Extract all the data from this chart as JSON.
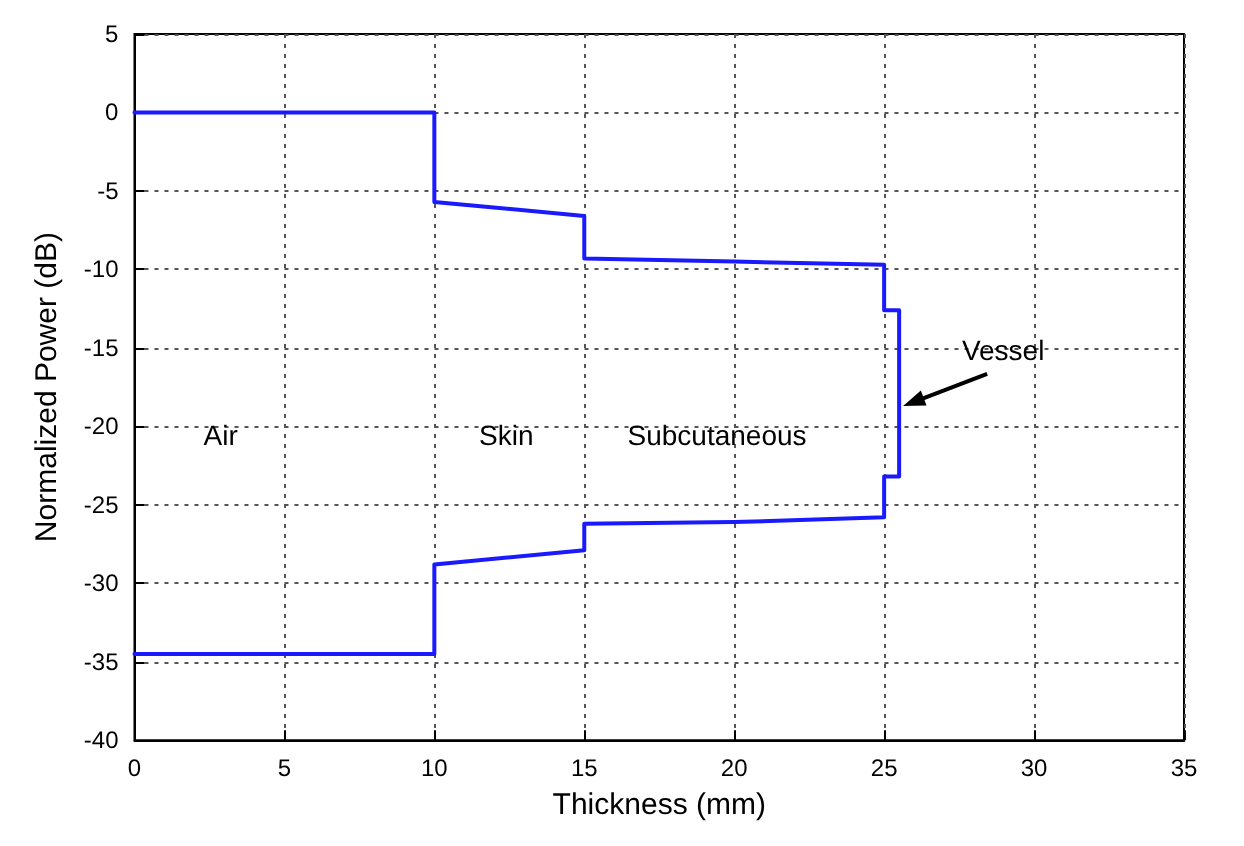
{
  "chart_data": {
    "type": "line",
    "xlabel": "Thickness (mm)",
    "ylabel": "Normalized Power (dB)",
    "xlim": [
      0,
      35
    ],
    "xticks": [
      0,
      5,
      10,
      15,
      20,
      25,
      30,
      35
    ],
    "ylim": [
      -40,
      5
    ],
    "yticks": [
      -40,
      -35,
      -30,
      -25,
      -20,
      -15,
      -10,
      -5,
      0,
      5
    ],
    "grid": true,
    "marker": "none",
    "line_style": "solid",
    "series": [
      {
        "color": "#1a1aff",
        "x": [
          0,
          10,
          10,
          15,
          15,
          20,
          25,
          25,
          25.5,
          25.5,
          25,
          25,
          20,
          15,
          15,
          10,
          10,
          0
        ],
        "values": [
          0,
          0,
          -5.7,
          -6.6,
          -9.3,
          -9.5,
          -9.7,
          -12.6,
          -12.6,
          -23.2,
          -23.2,
          -25.8,
          -26.1,
          -26.2,
          -27.9,
          -28.8,
          -34.5,
          -34.5
        ]
      }
    ],
    "annotations": [
      "Air",
      "Skin",
      "Subcutaneous",
      {
        "text": "Vessel",
        "x": 25.5,
        "y": -18.7
      }
    ]
  }
}
